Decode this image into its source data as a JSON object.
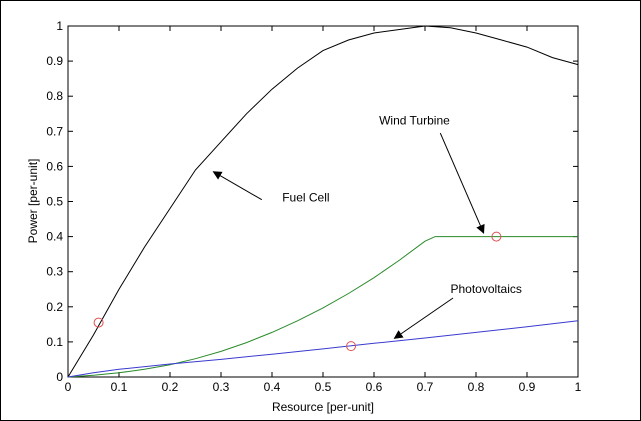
{
  "chart_data": {
    "type": "line",
    "title": "",
    "xlabel": "Resource [per-unit]",
    "ylabel": "Power [per-unit]",
    "xlim": [
      0,
      1
    ],
    "ylim": [
      0,
      1
    ],
    "xticks": [
      "0",
      "0.1",
      "0.2",
      "0.3",
      "0.4",
      "0.5",
      "0.6",
      "0.7",
      "0.8",
      "0.9",
      "1"
    ],
    "yticks": [
      "0",
      "0.1",
      "0.2",
      "0.3",
      "0.4",
      "0.5",
      "0.6",
      "0.7",
      "0.8",
      "0.9",
      "1"
    ],
    "grid": false,
    "legend": "none",
    "series": [
      {
        "name": "Fuel Cell",
        "color": "#000000",
        "x": [
          0,
          0.05,
          0.1,
          0.15,
          0.2,
          0.25,
          0.3,
          0.35,
          0.4,
          0.45,
          0.5,
          0.55,
          0.6,
          0.65,
          0.7,
          0.75,
          0.8,
          0.85,
          0.9,
          0.95,
          1
        ],
        "y": [
          0,
          0.12,
          0.25,
          0.37,
          0.48,
          0.59,
          0.67,
          0.75,
          0.82,
          0.88,
          0.93,
          0.96,
          0.98,
          0.99,
          1.0,
          0.995,
          0.98,
          0.96,
          0.94,
          0.91,
          0.89
        ]
      },
      {
        "name": "Wind Turbine",
        "color": "#2a8a2a",
        "x": [
          0,
          0.05,
          0.1,
          0.15,
          0.2,
          0.25,
          0.3,
          0.35,
          0.4,
          0.45,
          0.5,
          0.55,
          0.6,
          0.65,
          0.7,
          0.72,
          0.8,
          0.9,
          1
        ],
        "y": [
          0,
          0.005,
          0.012,
          0.022,
          0.035,
          0.052,
          0.073,
          0.098,
          0.127,
          0.16,
          0.197,
          0.238,
          0.283,
          0.333,
          0.387,
          0.4,
          0.4,
          0.4,
          0.4
        ]
      },
      {
        "name": "Photovoltaics",
        "color": "#3a3ad0",
        "x": [
          0,
          0.05,
          0.1,
          0.2,
          0.3,
          0.4,
          0.5,
          0.6,
          0.7,
          0.8,
          0.9,
          1
        ],
        "y": [
          0,
          0.012,
          0.022,
          0.037,
          0.05,
          0.065,
          0.08,
          0.096,
          0.111,
          0.127,
          0.143,
          0.16
        ]
      }
    ],
    "markers": [
      {
        "series": "Fuel Cell",
        "x": 0.06,
        "y": 0.155,
        "color": "#e05050"
      },
      {
        "series": "Wind Turbine",
        "x": 0.84,
        "y": 0.4,
        "color": "#e05050"
      },
      {
        "series": "Photovoltaics",
        "x": 0.555,
        "y": 0.088,
        "color": "#e05050"
      }
    ],
    "annotations": [
      {
        "text": "Fuel Cell",
        "text_x": 0.42,
        "text_y": 0.5,
        "arrow_from": [
          0.38,
          0.505
        ],
        "arrow_to": [
          0.285,
          0.585
        ]
      },
      {
        "text": "Wind Turbine",
        "text_x": 0.61,
        "text_y": 0.72,
        "arrow_from": [
          0.73,
          0.695
        ],
        "arrow_to": [
          0.815,
          0.41
        ]
      },
      {
        "text": "Photovoltaics",
        "text_x": 0.75,
        "text_y": 0.24,
        "arrow_from": [
          0.755,
          0.225
        ],
        "arrow_to": [
          0.64,
          0.11
        ]
      }
    ]
  }
}
